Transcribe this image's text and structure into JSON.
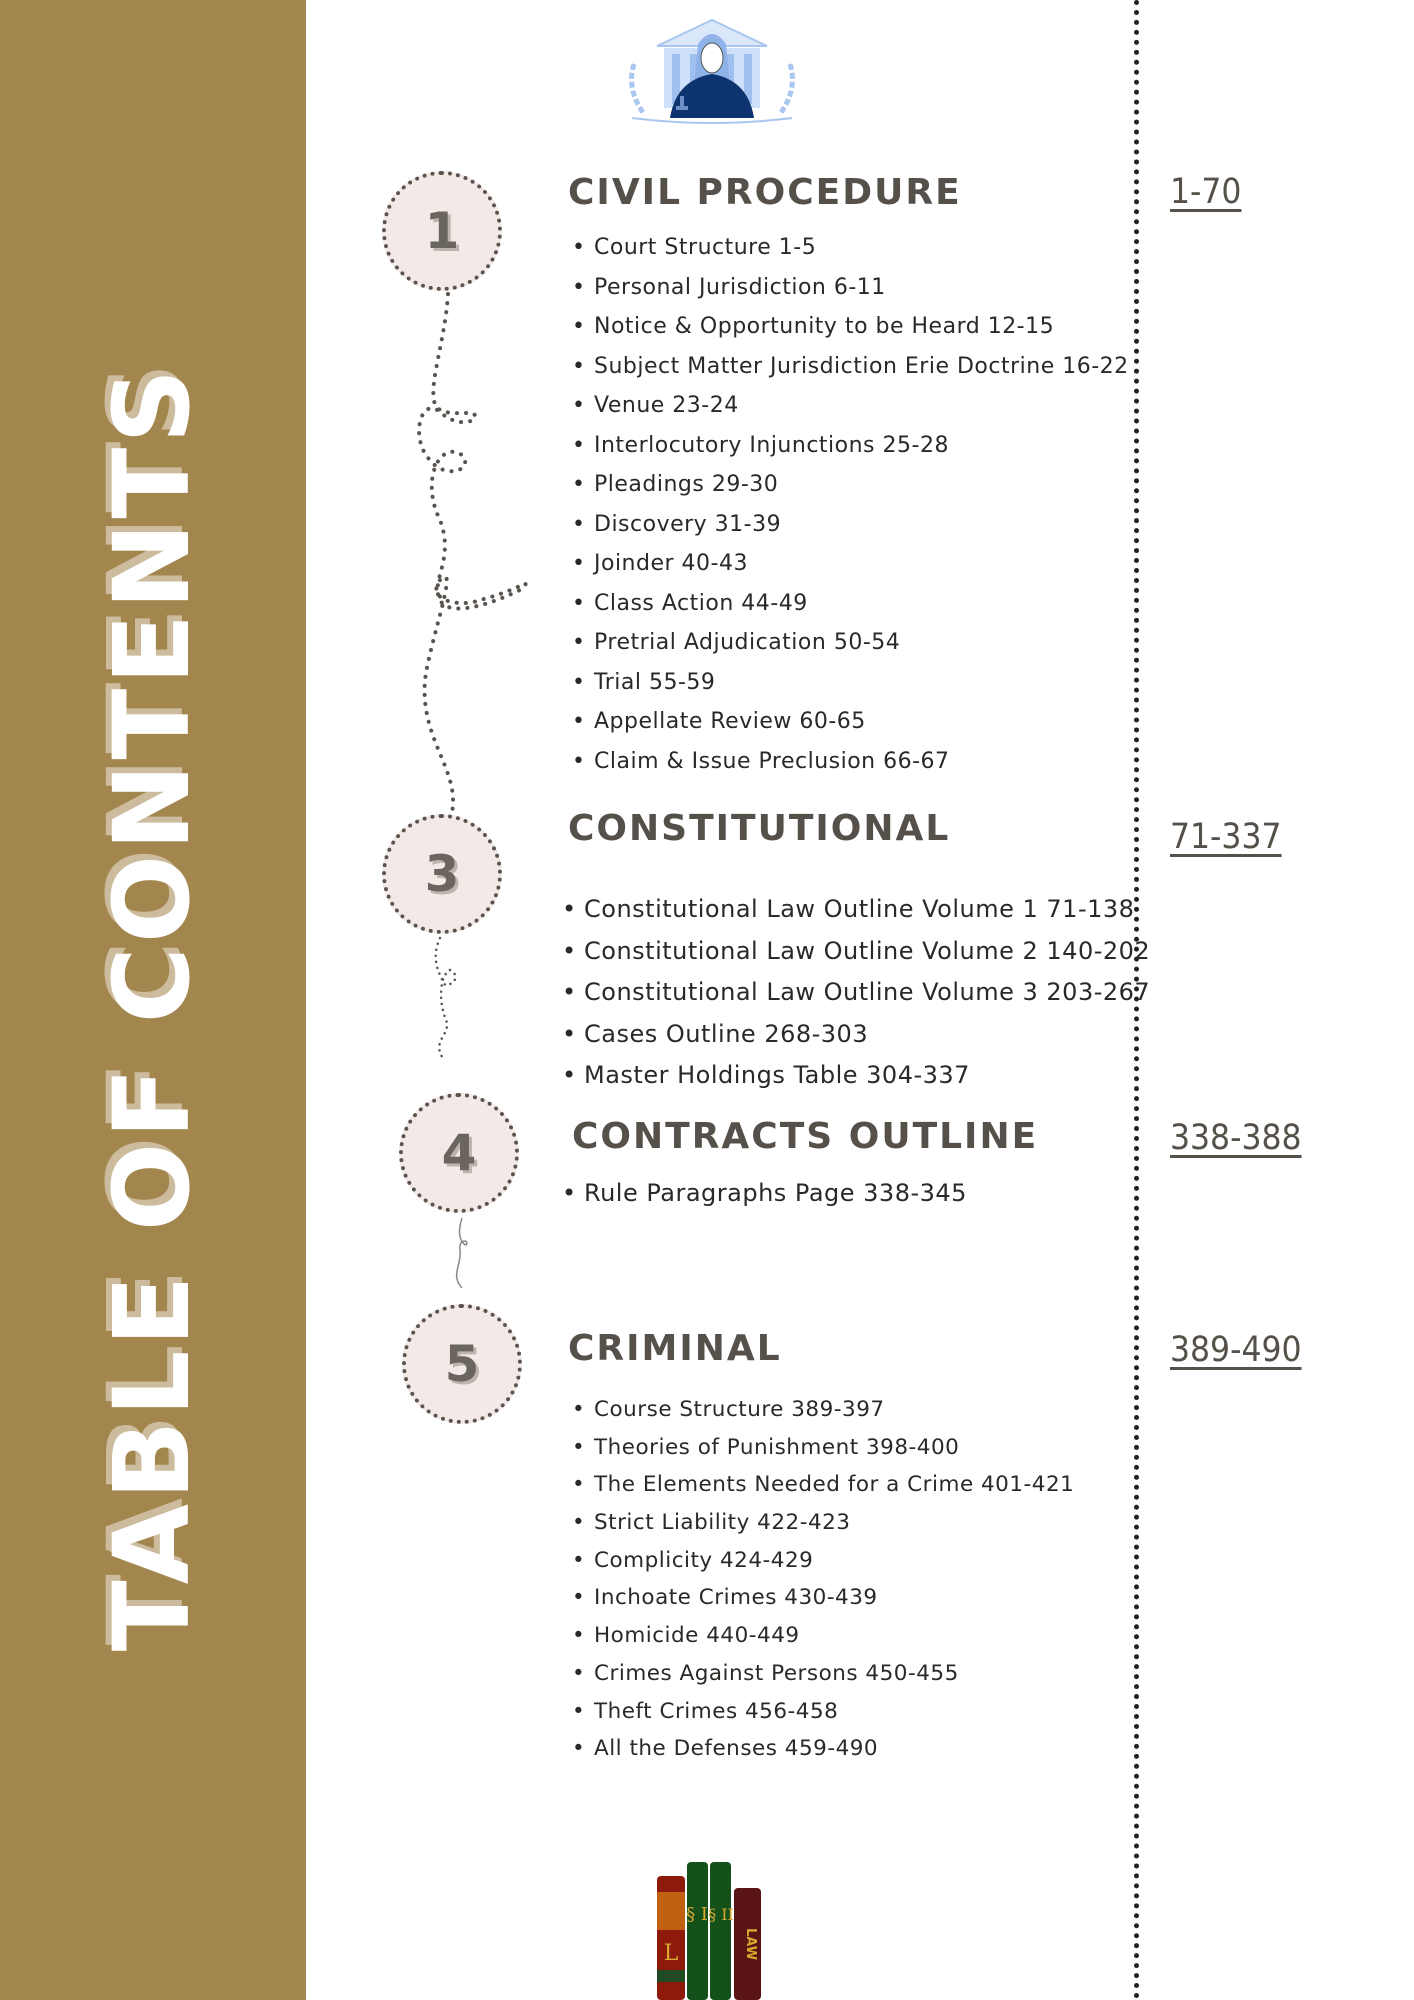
{
  "title": "TABLE OF CONTENTS",
  "colors": {
    "sidebar": "#a3864e",
    "text": "#55504a",
    "circle_fill": "#f3e9e7"
  },
  "icons": {
    "top": "judge-with-gavel-illustration",
    "bottom": "law-books-illustration"
  },
  "books_labels": [
    "L",
    "§ I",
    "§ II",
    "LAW"
  ],
  "sections": [
    {
      "number": "1",
      "heading": "CIVIL PROCEDURE",
      "pages": "1-70",
      "items": [
        "Court Structure 1-5",
        "Personal Jurisdiction 6-11",
        "Notice & Opportunity to be Heard 12-15",
        "Subject Matter Jurisdiction Erie Doctrine 16-22",
        "Venue 23-24",
        "Interlocutory Injunctions 25-28",
        "Pleadings 29-30",
        "Discovery 31-39",
        "Joinder 40-43",
        "Class Action 44-49",
        "Pretrial Adjudication 50-54",
        "Trial 55-59",
        "Appellate Review 60-65",
        "Claim & Issue Preclusion 66-67"
      ]
    },
    {
      "number": "3",
      "heading": "CONSTITUTIONAL",
      "pages": "71-337",
      "items": [
        "Constitutional Law Outline Volume 1 71-138",
        "Constitutional Law Outline Volume 2 140-202",
        "Constitutional Law Outline Volume 3 203-267",
        "Cases Outline 268-303",
        "Master Holdings Table 304-337"
      ]
    },
    {
      "number": "4",
      "heading": "CONTRACTS OUTLINE",
      "pages": "338-388",
      "items": [
        "Rule Paragraphs Page 338-345"
      ]
    },
    {
      "number": "5",
      "heading": "CRIMINAL",
      "pages": "389-490",
      "items": [
        "Course Structure 389-397",
        "Theories of Punishment 398-400",
        "The Elements Needed for a Crime 401-421",
        "Strict Liability 422-423",
        "Complicity 424-429",
        "Inchoate Crimes 430-439",
        "Homicide 440-449",
        "Crimes Against Persons 450-455",
        "Theft Crimes 456-458",
        "All the Defenses 459-490"
      ]
    }
  ]
}
